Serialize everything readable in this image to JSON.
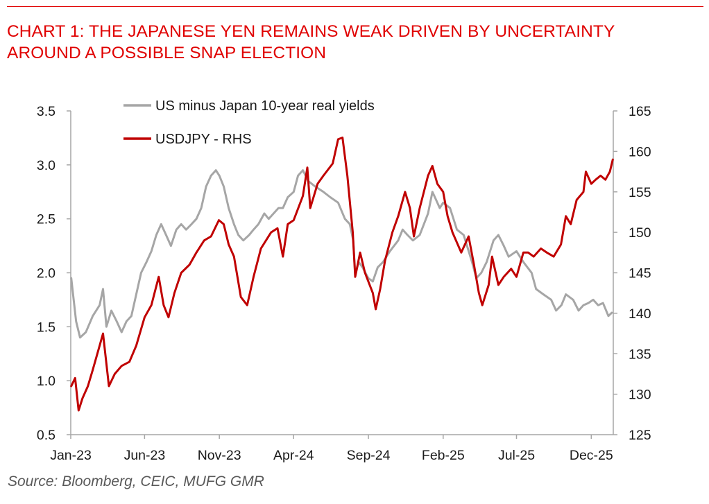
{
  "title_line1": "CHART 1: THE JAPANESE YEN REMAINS WEAK DRIVEN BY UNCERTAINTY",
  "title_line2": "AROUND A POSSIBLE SNAP ELECTION",
  "source": "Source: Bloomberg, CEIC, MUFG GMR",
  "colors": {
    "title": "#e00000",
    "yields": "#a6a6a6",
    "usdjpy": "#c00000"
  },
  "chart_data": {
    "type": "line",
    "x_tick_labels": [
      "Jan-23",
      "Jun-23",
      "Nov-23",
      "Apr-24",
      "Sep-24",
      "Feb-25",
      "Jul-25",
      "Dec-25"
    ],
    "x_tick_dates": [
      "2023-01-01",
      "2023-06-01",
      "2023-11-01",
      "2024-04-01",
      "2024-09-01",
      "2025-02-01",
      "2025-07-01",
      "2025-12-01"
    ],
    "xlim": [
      "2023-01-01",
      "2026-01-15"
    ],
    "y_left": {
      "ylim": [
        0.5,
        3.5
      ],
      "ticks": [
        "0.5",
        "1.0",
        "1.5",
        "2.0",
        "2.5",
        "3.0",
        "3.5"
      ]
    },
    "y_right": {
      "ylim": [
        125,
        165
      ],
      "ticks": [
        "125",
        "130",
        "135",
        "140",
        "145",
        "150",
        "155",
        "160",
        "165"
      ]
    },
    "legend": "top-left",
    "grid": false,
    "series": [
      {
        "name": "US minus Japan 10-year real yields",
        "axis": "left",
        "color": "#a6a6a6",
        "points": [
          [
            "2023-01-02",
            1.95
          ],
          [
            "2023-01-12",
            1.55
          ],
          [
            "2023-01-20",
            1.4
          ],
          [
            "2023-02-01",
            1.45
          ],
          [
            "2023-02-15",
            1.6
          ],
          [
            "2023-03-01",
            1.7
          ],
          [
            "2023-03-08",
            1.85
          ],
          [
            "2023-03-15",
            1.5
          ],
          [
            "2023-03-25",
            1.65
          ],
          [
            "2023-04-05",
            1.55
          ],
          [
            "2023-04-15",
            1.45
          ],
          [
            "2023-04-25",
            1.55
          ],
          [
            "2023-05-05",
            1.6
          ],
          [
            "2023-05-15",
            1.8
          ],
          [
            "2023-05-25",
            2.0
          ],
          [
            "2023-06-05",
            2.1
          ],
          [
            "2023-06-15",
            2.2
          ],
          [
            "2023-06-25",
            2.35
          ],
          [
            "2023-07-05",
            2.45
          ],
          [
            "2023-07-15",
            2.35
          ],
          [
            "2023-07-25",
            2.25
          ],
          [
            "2023-08-05",
            2.4
          ],
          [
            "2023-08-15",
            2.45
          ],
          [
            "2023-08-25",
            2.4
          ],
          [
            "2023-09-05",
            2.45
          ],
          [
            "2023-09-15",
            2.5
          ],
          [
            "2023-09-25",
            2.6
          ],
          [
            "2023-10-05",
            2.8
          ],
          [
            "2023-10-15",
            2.9
          ],
          [
            "2023-10-25",
            2.95
          ],
          [
            "2023-11-01",
            2.9
          ],
          [
            "2023-11-10",
            2.8
          ],
          [
            "2023-11-20",
            2.6
          ],
          [
            "2023-12-01",
            2.45
          ],
          [
            "2023-12-10",
            2.35
          ],
          [
            "2023-12-20",
            2.3
          ],
          [
            "2024-01-01",
            2.35
          ],
          [
            "2024-01-10",
            2.4
          ],
          [
            "2024-01-20",
            2.45
          ],
          [
            "2024-02-01",
            2.55
          ],
          [
            "2024-02-10",
            2.5
          ],
          [
            "2024-02-20",
            2.55
          ],
          [
            "2024-03-01",
            2.6
          ],
          [
            "2024-03-10",
            2.6
          ],
          [
            "2024-03-20",
            2.7
          ],
          [
            "2024-04-01",
            2.75
          ],
          [
            "2024-04-10",
            2.9
          ],
          [
            "2024-04-20",
            2.95
          ],
          [
            "2024-05-01",
            2.85
          ],
          [
            "2024-05-15",
            2.8
          ],
          [
            "2024-06-01",
            2.75
          ],
          [
            "2024-06-15",
            2.7
          ],
          [
            "2024-07-01",
            2.65
          ],
          [
            "2024-07-15",
            2.5
          ],
          [
            "2024-07-25",
            2.45
          ],
          [
            "2024-08-01",
            2.3
          ],
          [
            "2024-08-05",
            1.98
          ],
          [
            "2024-08-12",
            2.1
          ],
          [
            "2024-08-20",
            2.05
          ],
          [
            "2024-09-01",
            1.95
          ],
          [
            "2024-09-10",
            1.92
          ],
          [
            "2024-09-20",
            2.05
          ],
          [
            "2024-10-01",
            2.1
          ],
          [
            "2024-10-15",
            2.2
          ],
          [
            "2024-11-01",
            2.3
          ],
          [
            "2024-11-10",
            2.4
          ],
          [
            "2024-11-20",
            2.35
          ],
          [
            "2024-12-01",
            2.3
          ],
          [
            "2024-12-15",
            2.35
          ],
          [
            "2025-01-01",
            2.55
          ],
          [
            "2025-01-10",
            2.75
          ],
          [
            "2025-01-15",
            2.7
          ],
          [
            "2025-01-25",
            2.6
          ],
          [
            "2025-02-01",
            2.65
          ],
          [
            "2025-02-15",
            2.6
          ],
          [
            "2025-03-01",
            2.4
          ],
          [
            "2025-03-15",
            2.35
          ],
          [
            "2025-04-01",
            2.1
          ],
          [
            "2025-04-10",
            1.95
          ],
          [
            "2025-04-20",
            2.0
          ],
          [
            "2025-05-01",
            2.1
          ],
          [
            "2025-05-15",
            2.3
          ],
          [
            "2025-05-25",
            2.35
          ],
          [
            "2025-06-05",
            2.25
          ],
          [
            "2025-06-15",
            2.15
          ],
          [
            "2025-07-01",
            2.2
          ],
          [
            "2025-07-15",
            2.1
          ],
          [
            "2025-08-01",
            2.0
          ],
          [
            "2025-08-10",
            1.85
          ],
          [
            "2025-08-25",
            1.8
          ],
          [
            "2025-09-10",
            1.75
          ],
          [
            "2025-09-20",
            1.65
          ],
          [
            "2025-10-01",
            1.7
          ],
          [
            "2025-10-10",
            1.8
          ],
          [
            "2025-10-25",
            1.75
          ],
          [
            "2025-11-05",
            1.65
          ],
          [
            "2025-11-15",
            1.7
          ],
          [
            "2025-11-25",
            1.72
          ],
          [
            "2025-12-05",
            1.75
          ],
          [
            "2025-12-15",
            1.7
          ],
          [
            "2025-12-25",
            1.72
          ],
          [
            "2026-01-05",
            1.6
          ],
          [
            "2026-01-12",
            1.63
          ]
        ]
      },
      {
        "name": "USDJPY - RHS",
        "axis": "right",
        "color": "#c00000",
        "points": [
          [
            "2023-01-02",
            131
          ],
          [
            "2023-01-10",
            132
          ],
          [
            "2023-01-17",
            128
          ],
          [
            "2023-01-25",
            129.5
          ],
          [
            "2023-02-05",
            131
          ],
          [
            "2023-02-15",
            133
          ],
          [
            "2023-03-01",
            136
          ],
          [
            "2023-03-08",
            137.5
          ],
          [
            "2023-03-20",
            131
          ],
          [
            "2023-04-01",
            132.5
          ],
          [
            "2023-04-15",
            133.5
          ],
          [
            "2023-05-01",
            134
          ],
          [
            "2023-05-15",
            136
          ],
          [
            "2023-06-01",
            139.5
          ],
          [
            "2023-06-15",
            141
          ],
          [
            "2023-06-30",
            144.5
          ],
          [
            "2023-07-10",
            141
          ],
          [
            "2023-07-20",
            139.5
          ],
          [
            "2023-08-01",
            142.5
          ],
          [
            "2023-08-15",
            145
          ],
          [
            "2023-09-01",
            146
          ],
          [
            "2023-09-15",
            147.5
          ],
          [
            "2023-10-01",
            149
          ],
          [
            "2023-10-15",
            149.5
          ],
          [
            "2023-10-31",
            151.5
          ],
          [
            "2023-11-10",
            151
          ],
          [
            "2023-11-20",
            148.5
          ],
          [
            "2023-12-01",
            147
          ],
          [
            "2023-12-15",
            142
          ],
          [
            "2023-12-28",
            141
          ],
          [
            "2024-01-10",
            144.5
          ],
          [
            "2024-01-25",
            148
          ],
          [
            "2024-02-15",
            150
          ],
          [
            "2024-02-28",
            150.5
          ],
          [
            "2024-03-10",
            147
          ],
          [
            "2024-03-20",
            151
          ],
          [
            "2024-04-01",
            151.5
          ],
          [
            "2024-04-20",
            154.5
          ],
          [
            "2024-04-29",
            158
          ],
          [
            "2024-05-05",
            153
          ],
          [
            "2024-05-20",
            156
          ],
          [
            "2024-06-01",
            157
          ],
          [
            "2024-06-20",
            158.5
          ],
          [
            "2024-07-01",
            161.5
          ],
          [
            "2024-07-10",
            161.7
          ],
          [
            "2024-07-20",
            157
          ],
          [
            "2024-07-31",
            150
          ],
          [
            "2024-08-05",
            144.5
          ],
          [
            "2024-08-15",
            147.5
          ],
          [
            "2024-08-25",
            145
          ],
          [
            "2024-09-10",
            142.5
          ],
          [
            "2024-09-16",
            140.5
          ],
          [
            "2024-09-25",
            143
          ],
          [
            "2024-10-05",
            146.5
          ],
          [
            "2024-10-20",
            150
          ],
          [
            "2024-11-01",
            152
          ],
          [
            "2024-11-15",
            155
          ],
          [
            "2024-11-25",
            153
          ],
          [
            "2024-12-03",
            149.5
          ],
          [
            "2024-12-15",
            153
          ],
          [
            "2025-01-01",
            157
          ],
          [
            "2025-01-10",
            158.2
          ],
          [
            "2025-01-20",
            156
          ],
          [
            "2025-02-01",
            155
          ],
          [
            "2025-02-10",
            152
          ],
          [
            "2025-02-20",
            150
          ],
          [
            "2025-03-10",
            147.5
          ],
          [
            "2025-03-25",
            149.5
          ],
          [
            "2025-04-05",
            146
          ],
          [
            "2025-04-15",
            142.5
          ],
          [
            "2025-04-22",
            141
          ],
          [
            "2025-05-05",
            143.5
          ],
          [
            "2025-05-12",
            147
          ],
          [
            "2025-05-25",
            143.5
          ],
          [
            "2025-06-05",
            144.5
          ],
          [
            "2025-06-20",
            145.5
          ],
          [
            "2025-07-01",
            144.5
          ],
          [
            "2025-07-15",
            147.5
          ],
          [
            "2025-07-25",
            147.5
          ],
          [
            "2025-08-05",
            147
          ],
          [
            "2025-08-20",
            148
          ],
          [
            "2025-09-01",
            147.5
          ],
          [
            "2025-09-15",
            147
          ],
          [
            "2025-09-30",
            148.5
          ],
          [
            "2025-10-10",
            152
          ],
          [
            "2025-10-20",
            151
          ],
          [
            "2025-11-01",
            154
          ],
          [
            "2025-11-15",
            155
          ],
          [
            "2025-11-20",
            157.5
          ],
          [
            "2025-12-01",
            156
          ],
          [
            "2025-12-10",
            156.5
          ],
          [
            "2025-12-20",
            157
          ],
          [
            "2025-12-30",
            156.5
          ],
          [
            "2026-01-08",
            157.5
          ],
          [
            "2026-01-14",
            159
          ]
        ]
      }
    ]
  }
}
